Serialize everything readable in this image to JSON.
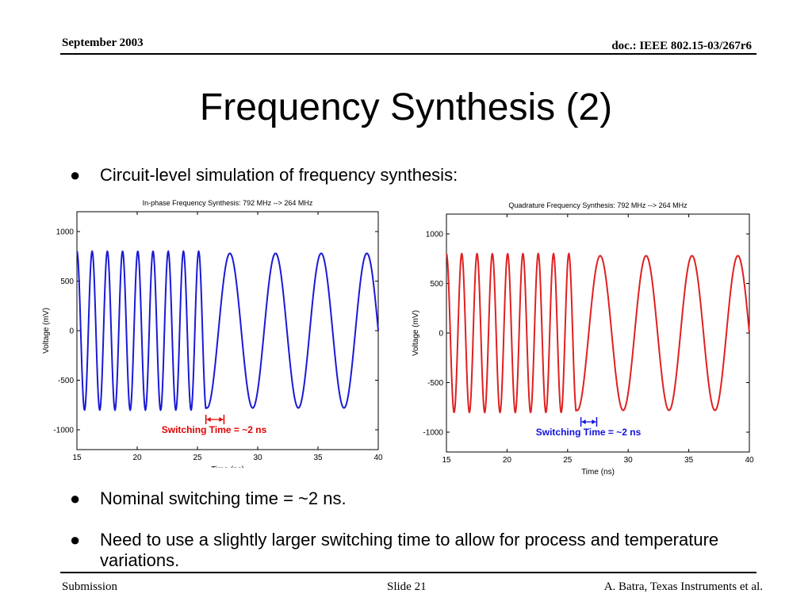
{
  "header": {
    "date": "September 2003",
    "doc": "doc.: IEEE 802.15-03/267r6"
  },
  "slide": {
    "title": "Frequency Synthesis (2)",
    "bullets": [
      "Circuit-level simulation of frequency synthesis:",
      "Nominal switching time = ~2 ns.",
      "Need to use a slightly larger switching time to allow for process and temperature variations."
    ]
  },
  "footer": {
    "left": "Submission",
    "center": "Slide 21",
    "right": "A. Batra, Texas Instruments et al."
  },
  "colors": {
    "inphase": "#1a1ad6",
    "quadrature": "#e02020",
    "annotation_red": "#e00000",
    "annotation_blue": "#1010e0"
  },
  "chart_data": [
    {
      "type": "line",
      "title": "In-phase Frequency Synthesis: 792 MHz --> 264 MHz",
      "xlabel": "Time (ns)",
      "ylabel": "Voltage (mV)",
      "xlim": [
        15,
        40
      ],
      "ylim": [
        -1200,
        1200
      ],
      "xticks": [
        15,
        20,
        25,
        30,
        35,
        40
      ],
      "yticks": [
        1000,
        500,
        0,
        -500,
        -1000
      ],
      "grid": false,
      "color": "#1a1ad6",
      "series": [
        {
          "segments": [
            {
              "x_start": 15,
              "x_end": 25.7,
              "freq_ghz": 0.792,
              "amplitude_mv": 800
            },
            {
              "x_start": 25.7,
              "x_end": 40,
              "freq_ghz": 0.264,
              "amplitude_mv": 780
            }
          ]
        }
      ],
      "annotation": {
        "text": "Switching Time = ~2 ns",
        "x_start": 25.7,
        "x_end": 27.2,
        "color": "#e00000"
      }
    },
    {
      "type": "line",
      "title": "Quadrature Frequency Synthesis: 792 MHz --> 264 MHz",
      "xlabel": "Time (ns)",
      "ylabel": "Voltage (mV)",
      "xlim": [
        15,
        40
      ],
      "ylim": [
        -1200,
        1200
      ],
      "xticks": [
        15,
        20,
        25,
        30,
        35,
        40
      ],
      "yticks": [
        1000,
        500,
        0,
        -500,
        -1000
      ],
      "grid": false,
      "color": "#e02020",
      "series": [
        {
          "segments": [
            {
              "x_start": 15,
              "x_end": 25.7,
              "freq_ghz": 0.792,
              "amplitude_mv": 800
            },
            {
              "x_start": 25.7,
              "x_end": 40,
              "freq_ghz": 0.264,
              "amplitude_mv": 780
            }
          ]
        }
      ],
      "annotation": {
        "text": "Switching Time = ~2 ns",
        "x_start": 26.1,
        "x_end": 27.4,
        "color": "#1010e0"
      }
    }
  ]
}
